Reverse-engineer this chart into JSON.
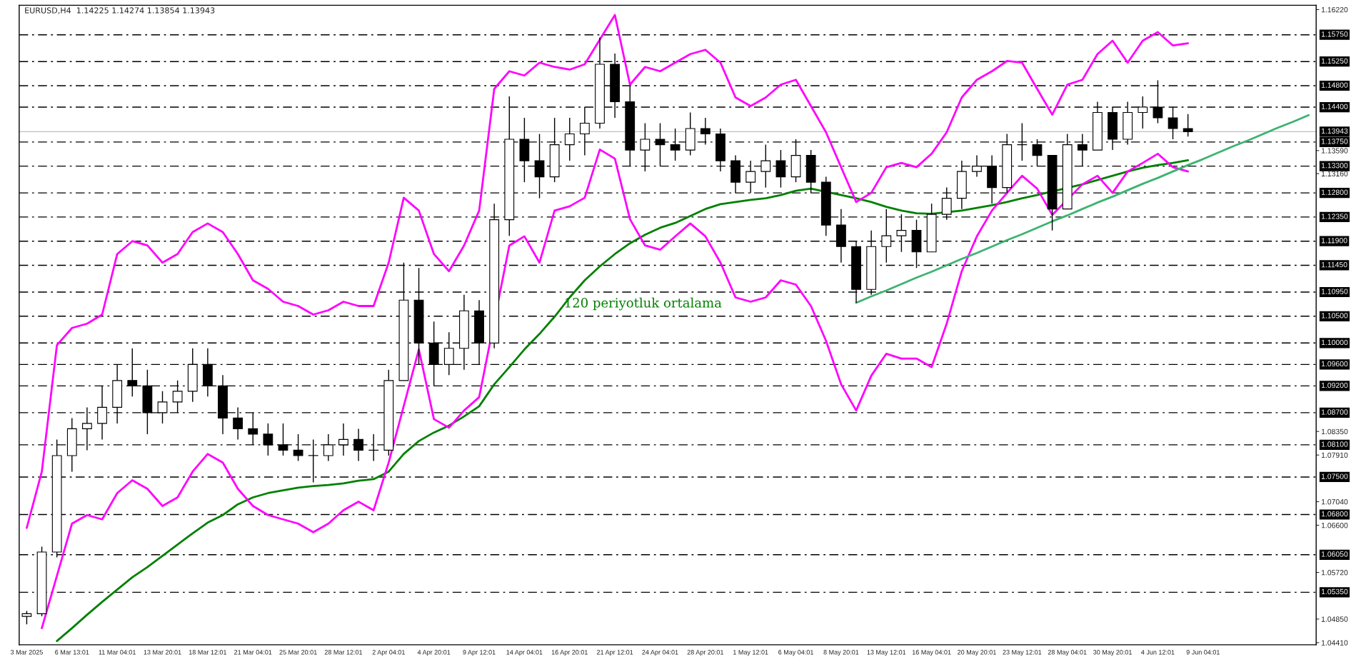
{
  "chart_data": {
    "type": "candlestick",
    "title": "EURUSD,H4  1.14225 1.14274 1.13854 1.13943",
    "categories": [
      "3 Mar 2025",
      null,
      null,
      "6 Mar 13:01",
      null,
      null,
      "11 Mar 04:01",
      null,
      null,
      "13 Mar 20:01",
      null,
      null,
      "18 Mar 12:01",
      null,
      null,
      "21 Mar 04:01",
      null,
      null,
      "25 Mar 20:01",
      null,
      null,
      "28 Mar 12:01",
      null,
      null,
      "2 Apr 04:01",
      null,
      null,
      "4 Apr 20:01",
      null,
      null,
      "9 Apr 12:01",
      null,
      null,
      "14 Apr 04:01",
      null,
      null,
      "16 Apr 20:01",
      null,
      null,
      "21 Apr 12:01",
      null,
      null,
      "24 Apr 04:01",
      null,
      null,
      "28 Apr 20:01",
      null,
      null,
      "1 May 12:01",
      null,
      null,
      "6 May 04:01",
      null,
      null,
      "8 May 20:01",
      null,
      null,
      "13 May 12:01",
      null,
      null,
      "16 May 04:01",
      null,
      null,
      "20 May 20:01",
      null,
      null,
      "23 May 12:01",
      null,
      null,
      "28 May 04:01",
      null,
      null,
      "30 May 20:01",
      null,
      null,
      "4 Jun 12:01",
      null,
      null,
      "9 Jun 04:01",
      null,
      null,
      null,
      null,
      null,
      null,
      null
    ],
    "ohlc": [
      [
        1.049,
        1.05,
        1.0475,
        1.0495
      ],
      [
        1.0495,
        1.062,
        1.049,
        1.061
      ],
      [
        1.061,
        1.082,
        1.06,
        1.079
      ],
      [
        1.079,
        1.086,
        1.076,
        1.084
      ],
      [
        1.084,
        1.088,
        1.08,
        1.085
      ],
      [
        1.085,
        1.092,
        1.082,
        1.088
      ],
      [
        1.088,
        1.096,
        1.085,
        1.093
      ],
      [
        1.093,
        1.099,
        1.09,
        1.092
      ],
      [
        1.092,
        1.095,
        1.083,
        1.087
      ],
      [
        1.087,
        1.091,
        1.085,
        1.089
      ],
      [
        1.089,
        1.093,
        1.087,
        1.091
      ],
      [
        1.091,
        1.099,
        1.089,
        1.096
      ],
      [
        1.096,
        1.099,
        1.09,
        1.092
      ],
      [
        1.092,
        1.094,
        1.083,
        1.086
      ],
      [
        1.086,
        1.088,
        1.082,
        1.084
      ],
      [
        1.084,
        1.087,
        1.081,
        1.083
      ],
      [
        1.083,
        1.085,
        1.079,
        1.081
      ],
      [
        1.081,
        1.085,
        1.079,
        1.08
      ],
      [
        1.08,
        1.083,
        1.078,
        1.079
      ],
      [
        1.079,
        1.082,
        1.074,
        1.079
      ],
      [
        1.079,
        1.083,
        1.078,
        1.081
      ],
      [
        1.081,
        1.085,
        1.079,
        1.082
      ],
      [
        1.082,
        1.084,
        1.078,
        1.08
      ],
      [
        1.08,
        1.083,
        1.078,
        1.08
      ],
      [
        1.08,
        1.095,
        1.079,
        1.093
      ],
      [
        1.093,
        1.115,
        1.093,
        1.108
      ],
      [
        1.108,
        1.114,
        1.096,
        1.1
      ],
      [
        1.1,
        1.104,
        1.092,
        1.096
      ],
      [
        1.096,
        1.102,
        1.094,
        1.099
      ],
      [
        1.099,
        1.109,
        1.095,
        1.106
      ],
      [
        1.106,
        1.108,
        1.096,
        1.1
      ],
      [
        1.1,
        1.126,
        1.099,
        1.123
      ],
      [
        1.123,
        1.146,
        1.12,
        1.138
      ],
      [
        1.138,
        1.142,
        1.13,
        1.134
      ],
      [
        1.134,
        1.139,
        1.127,
        1.131
      ],
      [
        1.131,
        1.142,
        1.13,
        1.137
      ],
      [
        1.137,
        1.142,
        1.134,
        1.139
      ],
      [
        1.139,
        1.144,
        1.135,
        1.141
      ],
      [
        1.141,
        1.157,
        1.14,
        1.152
      ],
      [
        1.152,
        1.154,
        1.142,
        1.145
      ],
      [
        1.145,
        1.148,
        1.133,
        1.136
      ],
      [
        1.136,
        1.141,
        1.132,
        1.138
      ],
      [
        1.138,
        1.141,
        1.133,
        1.137
      ],
      [
        1.137,
        1.14,
        1.134,
        1.136
      ],
      [
        1.136,
        1.143,
        1.135,
        1.14
      ],
      [
        1.14,
        1.142,
        1.137,
        1.139
      ],
      [
        1.139,
        1.14,
        1.132,
        1.134
      ],
      [
        1.134,
        1.135,
        1.128,
        1.13
      ],
      [
        1.13,
        1.134,
        1.128,
        1.132
      ],
      [
        1.132,
        1.137,
        1.129,
        1.134
      ],
      [
        1.134,
        1.136,
        1.129,
        1.131
      ],
      [
        1.131,
        1.138,
        1.13,
        1.135
      ],
      [
        1.135,
        1.136,
        1.128,
        1.13
      ],
      [
        1.13,
        1.131,
        1.12,
        1.122
      ],
      [
        1.122,
        1.125,
        1.115,
        1.118
      ],
      [
        1.118,
        1.119,
        1.1075,
        1.11
      ],
      [
        1.11,
        1.121,
        1.109,
        1.118
      ],
      [
        1.118,
        1.125,
        1.115,
        1.12
      ],
      [
        1.12,
        1.124,
        1.117,
        1.121
      ],
      [
        1.121,
        1.123,
        1.114,
        1.117
      ],
      [
        1.117,
        1.126,
        1.117,
        1.124
      ],
      [
        1.124,
        1.129,
        1.123,
        1.127
      ],
      [
        1.127,
        1.134,
        1.125,
        1.132
      ],
      [
        1.132,
        1.135,
        1.131,
        1.133
      ],
      [
        1.133,
        1.135,
        1.126,
        1.129
      ],
      [
        1.129,
        1.139,
        1.128,
        1.137
      ],
      [
        1.137,
        1.141,
        1.134,
        1.137
      ],
      [
        1.137,
        1.138,
        1.133,
        1.135
      ],
      [
        1.135,
        1.135,
        1.121,
        1.125
      ],
      [
        1.125,
        1.139,
        1.125,
        1.137
      ],
      [
        1.137,
        1.139,
        1.133,
        1.136
      ],
      [
        1.136,
        1.145,
        1.136,
        1.143
      ],
      [
        1.143,
        1.144,
        1.136,
        1.138
      ],
      [
        1.138,
        1.145,
        1.137,
        1.143
      ],
      [
        1.143,
        1.146,
        1.14,
        1.144
      ],
      [
        1.144,
        1.149,
        1.141,
        1.142
      ],
      [
        1.142,
        1.144,
        1.138,
        1.14
      ],
      [
        1.14,
        1.1427,
        1.1385,
        1.1394
      ],
      null,
      null,
      null,
      null,
      null,
      null,
      null,
      null
    ],
    "series": [
      {
        "type": "line",
        "color": "#008000",
        "values": [
          null,
          null,
          1.0444,
          1.0468,
          1.0493,
          1.0517,
          1.054,
          1.0563,
          1.0582,
          1.0603,
          1.0624,
          1.0645,
          1.0665,
          1.0679,
          1.0699,
          1.0712,
          1.072,
          1.0725,
          1.073,
          1.0733,
          1.0735,
          1.0738,
          1.0743,
          1.0746,
          1.076,
          1.0793,
          1.0817,
          1.0833,
          1.0846,
          1.0863,
          1.0882,
          1.0923,
          1.0955,
          1.0988,
          1.1017,
          1.1049,
          1.1085,
          1.1117,
          1.1143,
          1.1166,
          1.1186,
          1.1202,
          1.1215,
          1.1224,
          1.1237,
          1.125,
          1.1259,
          1.1263,
          1.1267,
          1.127,
          1.1276,
          1.1284,
          1.1288,
          null,
          1.1276,
          1.127,
          1.1263,
          1.1254,
          1.1247,
          1.1242,
          1.1241,
          null,
          1.1247,
          1.1252,
          1.1257,
          1.1263,
          1.127,
          1.1276,
          null,
          null,
          1.1296,
          1.1304,
          1.1312,
          1.132,
          1.1327,
          1.1332,
          1.1336,
          1.1341,
          null,
          null,
          null,
          null,
          null,
          null,
          null,
          null
        ]
      },
      {
        "type": "line",
        "color": "#ff00ff",
        "values": [
          1.0655,
          1.076,
          1.0996,
          1.1028,
          1.1036,
          1.1053,
          1.1166,
          1.119,
          1.1182,
          1.115,
          1.1166,
          1.1207,
          1.1223,
          1.1207,
          1.1166,
          1.1117,
          1.1101,
          1.1077,
          1.1069,
          1.1053,
          1.1061,
          1.1077,
          1.1069,
          1.1069,
          1.115,
          1.1271,
          1.1247,
          1.1166,
          1.1134,
          1.1182,
          1.1247,
          1.1474,
          1.1507,
          1.1499,
          1.1523,
          1.1515,
          1.151,
          1.152,
          null,
          1.1612,
          1.1482,
          1.1515,
          1.1507,
          1.1523,
          1.1539,
          1.1547,
          1.1523,
          1.1458,
          1.1442,
          1.1458,
          1.1482,
          1.1491,
          1.1442,
          1.1393,
          1.1328,
          1.1263,
          1.128,
          1.1328,
          1.1336,
          1.1328,
          1.1353,
          1.1393,
          1.1458,
          1.1491,
          1.1507,
          1.1526,
          1.1523,
          1.1474,
          1.1426,
          1.1482,
          1.1491,
          1.1539,
          1.1564,
          1.1523,
          1.1564,
          1.158,
          1.1555,
          1.1559,
          null,
          null,
          null,
          null,
          null,
          null,
          null,
          null
        ]
      },
      {
        "type": "line",
        "color": "#ff00ff",
        "values": [
          null,
          1.0468,
          null,
          1.0663,
          1.0679,
          1.0671,
          1.072,
          1.0744,
          1.0728,
          1.0696,
          1.0712,
          1.076,
          1.0793,
          1.0777,
          1.0728,
          1.0696,
          1.0679,
          1.0671,
          1.0663,
          1.0647,
          1.0663,
          1.0688,
          1.0704,
          1.0688,
          1.0777,
          null,
          1.0988,
          1.0858,
          1.0842,
          1.0874,
          1.0899,
          null,
          1.1182,
          1.1199,
          1.115,
          1.1247,
          1.1255,
          1.1271,
          1.1361,
          1.1344,
          1.1231,
          1.1182,
          1.1174,
          1.1199,
          1.1223,
          1.1199,
          1.115,
          1.1085,
          1.1077,
          1.1085,
          1.1117,
          1.1109,
          1.1069,
          1.1004,
          1.0923,
          1.0874,
          1.0939,
          1.098,
          1.0971,
          1.0971,
          1.0955,
          1.1036,
          1.1134,
          1.1199,
          1.1247,
          1.128,
          1.1312,
          1.1288,
          1.1239,
          null,
          1.1296,
          1.1312,
          1.128,
          1.132,
          1.1336,
          1.1353,
          1.1328,
          1.132,
          null,
          null,
          null,
          null,
          null,
          null,
          null,
          null
        ]
      },
      {
        "type": "line",
        "color": "#3cb371",
        "values": [
          null,
          null,
          null,
          null,
          null,
          null,
          null,
          null,
          null,
          null,
          null,
          null,
          null,
          null,
          null,
          null,
          null,
          null,
          null,
          null,
          null,
          null,
          null,
          null,
          null,
          null,
          null,
          null,
          null,
          null,
          null,
          null,
          null,
          null,
          null,
          null,
          null,
          null,
          null,
          null,
          null,
          null,
          null,
          null,
          null,
          null,
          null,
          null,
          null,
          null,
          null,
          null,
          null,
          null,
          null,
          1.1075,
          1.1087,
          1.1098,
          1.111,
          1.1122,
          1.1133,
          1.1145,
          1.1157,
          1.1168,
          1.118,
          1.1192,
          1.1203,
          1.1215,
          1.1227,
          1.1238,
          1.125,
          1.1262,
          1.1273,
          1.1285,
          1.1297,
          1.1308,
          1.132,
          1.1332,
          1.1343,
          1.1355,
          1.1367,
          1.1378,
          1.139,
          1.1402,
          1.1413,
          1.1425
        ]
      }
    ],
    "ylim": [
      1.0437,
      1.163
    ],
    "yticks": [
      {
        "value": 1.1622,
        "label": "1.16220"
      },
      {
        "value": 1.1359,
        "label": "1.13590"
      },
      {
        "value": 1.1316,
        "label": "1.13160"
      },
      {
        "value": 1.0835,
        "label": "1.08350"
      },
      {
        "value": 1.0791,
        "label": "1.07910"
      },
      {
        "value": 1.0704,
        "label": "1.07040"
      },
      {
        "value": 1.066,
        "label": "1.06600"
      },
      {
        "value": 1.0572,
        "label": "1.05720"
      },
      {
        "value": 1.0485,
        "label": "1.04850"
      },
      {
        "value": 1.0441,
        "label": "1.04410"
      }
    ],
    "ref_lines": [
      {
        "axis": "y",
        "value": 1.1575,
        "label": "1.15750",
        "color": "#000000",
        "line_style": "dashdot"
      },
      {
        "axis": "y",
        "value": 1.1525,
        "label": "1.15250",
        "color": "#000000",
        "line_style": "dashdot"
      },
      {
        "axis": "y",
        "value": 1.148,
        "label": "1.14800",
        "color": "#000000",
        "line_style": "dashdot"
      },
      {
        "axis": "y",
        "value": 1.144,
        "label": "1.14400",
        "color": "#000000",
        "line_style": "dashdot"
      },
      {
        "axis": "y",
        "value": 1.13943,
        "label": "1.13943",
        "color": "#c0c0c0",
        "line_style": "solid"
      },
      {
        "axis": "y",
        "value": 1.1375,
        "label": "1.13750",
        "color": "#000000",
        "line_style": "dashdot"
      },
      {
        "axis": "y",
        "value": 1.133,
        "label": "1.13300",
        "color": "#000000",
        "line_style": "dashdot"
      },
      {
        "axis": "y",
        "value": 1.128,
        "label": "1.12800",
        "color": "#000000",
        "line_style": "dashdot"
      },
      {
        "axis": "y",
        "value": 1.1235,
        "label": "1.12350",
        "color": "#000000",
        "line_style": "dashdot"
      },
      {
        "axis": "y",
        "value": 1.119,
        "label": "1.11900",
        "color": "#000000",
        "line_style": "dashdot"
      },
      {
        "axis": "y",
        "value": 1.1145,
        "label": "1.11450",
        "color": "#000000",
        "line_style": "dashdot"
      },
      {
        "axis": "y",
        "value": 1.1095,
        "label": "1.10950",
        "color": "#000000",
        "line_style": "dashdot"
      },
      {
        "axis": "y",
        "value": 1.105,
        "label": "1.10500",
        "color": "#000000",
        "line_style": "dashdot"
      },
      {
        "axis": "y",
        "value": 1.1,
        "label": "1.10000",
        "color": "#000000",
        "line_style": "dashdot"
      },
      {
        "axis": "y",
        "value": 1.096,
        "label": "1.09600",
        "color": "#000000",
        "line_style": "dashdot"
      },
      {
        "axis": "y",
        "value": 1.092,
        "label": "1.09200",
        "color": "#000000",
        "line_style": "dashdot"
      },
      {
        "axis": "y",
        "value": 1.087,
        "label": "1.08700",
        "color": "#000000",
        "line_style": "dashdot"
      },
      {
        "axis": "y",
        "value": 1.081,
        "label": "1.08100",
        "color": "#000000",
        "line_style": "dashdot"
      },
      {
        "axis": "y",
        "value": 1.075,
        "label": "1.07500",
        "color": "#000000",
        "line_style": "dashdot"
      },
      {
        "axis": "y",
        "value": 1.068,
        "label": "1.06800",
        "color": "#000000",
        "line_style": "dashdot"
      },
      {
        "axis": "y",
        "value": 1.0605,
        "label": "1.06050",
        "color": "#000000",
        "line_style": "dashdot"
      },
      {
        "axis": "y",
        "value": 1.0535,
        "label": "1.05350",
        "color": "#000000",
        "line_style": "dashdot"
      }
    ],
    "annotations": [
      "120 periyotluk ortalama"
    ],
    "grid": false,
    "legend": false
  }
}
